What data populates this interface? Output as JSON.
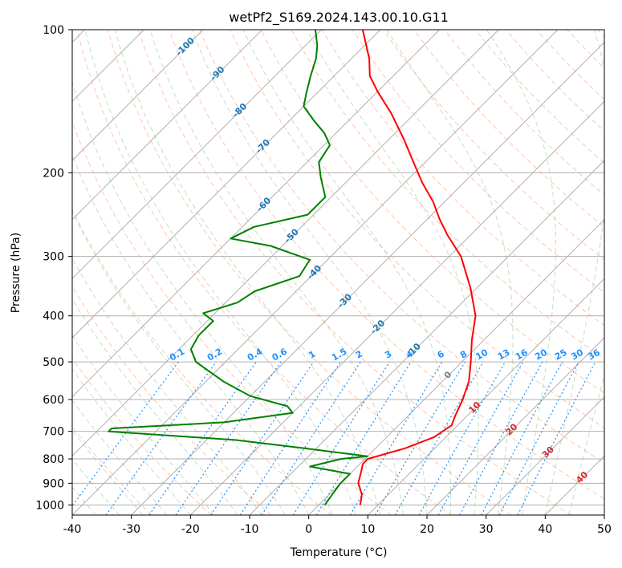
{
  "chart_data": {
    "type": "line",
    "subtype": "skew-T log-P diagram",
    "title": "wetPf2_S169.2024.143.00.10.G11",
    "xlabel": "Temperature (°C)",
    "ylabel": "Pressure (hPa)",
    "xlim": [
      -40,
      50
    ],
    "ylim": [
      1050,
      100
    ],
    "y_scale": "log",
    "grid": true,
    "x_ticks": [
      -40,
      -30,
      -20,
      -10,
      0,
      10,
      20,
      30,
      40,
      50
    ],
    "y_ticks": [
      100,
      200,
      300,
      400,
      500,
      600,
      700,
      800,
      900,
      1000
    ],
    "series": [
      {
        "role": "temperature",
        "color": "#ff0000",
        "points": [
          {
            "p": 1000,
            "t": 7.0
          },
          {
            "p": 950,
            "t": 5.5
          },
          {
            "p": 900,
            "t": 3.0
          },
          {
            "p": 850,
            "t": 1.5
          },
          {
            "p": 820,
            "t": 0.5
          },
          {
            "p": 800,
            "t": 0.5
          },
          {
            "p": 760,
            "t": 5.0
          },
          {
            "p": 720,
            "t": 8.0
          },
          {
            "p": 680,
            "t": 9.0
          },
          {
            "p": 650,
            "t": 8.0
          },
          {
            "p": 600,
            "t": 6.5
          },
          {
            "p": 550,
            "t": 4.5
          },
          {
            "p": 500,
            "t": 1.5
          },
          {
            "p": 450,
            "t": -2.0
          },
          {
            "p": 400,
            "t": -5.5
          },
          {
            "p": 350,
            "t": -11.0
          },
          {
            "p": 300,
            "t": -18.0
          },
          {
            "p": 270,
            "t": -24.0
          },
          {
            "p": 250,
            "t": -28.0
          },
          {
            "p": 230,
            "t": -32.0
          },
          {
            "p": 210,
            "t": -37.0
          },
          {
            "p": 190,
            "t": -42.0
          },
          {
            "p": 170,
            "t": -47.5
          },
          {
            "p": 150,
            "t": -54.0
          },
          {
            "p": 135,
            "t": -60.0
          },
          {
            "p": 125,
            "t": -64.0
          },
          {
            "p": 115,
            "t": -67.0
          },
          {
            "p": 100,
            "t": -73.0
          }
        ]
      },
      {
        "role": "dewpoint",
        "color": "#008000",
        "points": [
          {
            "p": 1000,
            "t": 1.0
          },
          {
            "p": 950,
            "t": 0.5
          },
          {
            "p": 900,
            "t": 0.0
          },
          {
            "p": 860,
            "t": 0.0
          },
          {
            "p": 830,
            "t": -8.0
          },
          {
            "p": 800,
            "t": -4.0
          },
          {
            "p": 790,
            "t": 0.0
          },
          {
            "p": 760,
            "t": -12.0
          },
          {
            "p": 730,
            "t": -25.0
          },
          {
            "p": 700,
            "t": -48.0
          },
          {
            "p": 690,
            "t": -48.0
          },
          {
            "p": 670,
            "t": -30.0
          },
          {
            "p": 640,
            "t": -20.0
          },
          {
            "p": 620,
            "t": -22.0
          },
          {
            "p": 590,
            "t": -30.0
          },
          {
            "p": 550,
            "t": -37.0
          },
          {
            "p": 500,
            "t": -45.0
          },
          {
            "p": 470,
            "t": -48.0
          },
          {
            "p": 440,
            "t": -49.0
          },
          {
            "p": 410,
            "t": -49.0
          },
          {
            "p": 395,
            "t": -52.0
          },
          {
            "p": 375,
            "t": -48.0
          },
          {
            "p": 355,
            "t": -47.0
          },
          {
            "p": 330,
            "t": -42.0
          },
          {
            "p": 305,
            "t": -43.0
          },
          {
            "p": 285,
            "t": -52.0
          },
          {
            "p": 275,
            "t": -60.0
          },
          {
            "p": 260,
            "t": -58.0
          },
          {
            "p": 245,
            "t": -51.0
          },
          {
            "p": 225,
            "t": -51.0
          },
          {
            "p": 205,
            "t": -55.0
          },
          {
            "p": 190,
            "t": -58.0
          },
          {
            "p": 175,
            "t": -59.0
          },
          {
            "p": 165,
            "t": -62.0
          },
          {
            "p": 155,
            "t": -66.0
          },
          {
            "p": 145,
            "t": -70.0
          },
          {
            "p": 135,
            "t": -72.0
          },
          {
            "p": 125,
            "t": -74.0
          },
          {
            "p": 115,
            "t": -76.0
          },
          {
            "p": 108,
            "t": -78.0
          },
          {
            "p": 100,
            "t": -81.0
          }
        ]
      }
    ],
    "background_lines": {
      "isotherm_color": "#b0b0b0",
      "dry_adiabat_color": "#ffa07a",
      "moist_adiabat_color": "#8fbc8f",
      "mixing_ratio_color": "#1e90ff",
      "mixing_ratio_values": [
        "0.1",
        "0.2",
        "0.4",
        "0.6",
        "1",
        "1.5",
        "2",
        "3",
        "4",
        "6",
        "8",
        "10",
        "13",
        "16",
        "20",
        "25",
        "30",
        "36"
      ],
      "mixing_ratio_label_color": "#1e90ff",
      "cold_isotherm_labels": [
        "-100",
        "-90",
        "-80",
        "-70",
        "-60",
        "-50",
        "-40",
        "-30",
        "-20",
        "-10"
      ],
      "cold_isotherm_label_color": "#1f77b4",
      "zero_isotherm_label": "0",
      "zero_label_color": "#7f7f7f",
      "warm_isotherm_labels": [
        "10",
        "20",
        "30",
        "40"
      ],
      "warm_label_color": "#d62728"
    }
  }
}
